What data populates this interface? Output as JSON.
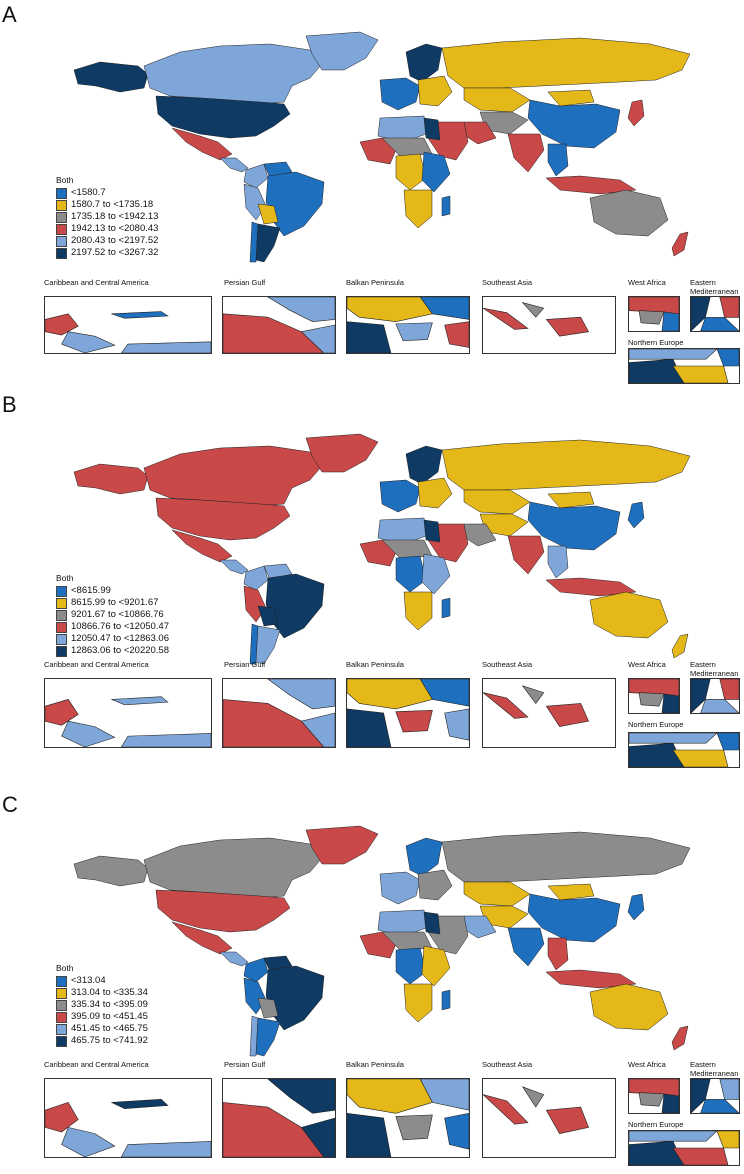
{
  "colors": {
    "c1": "#1f6fbf",
    "c2": "#e4b818",
    "c3": "#8c8c8c",
    "c4": "#c94848",
    "c5": "#7ea6d9",
    "c6": "#0e3a63",
    "ocean": "#ffffff",
    "border": "#222222"
  },
  "insets": {
    "caribbean": "Caribbean and Central America",
    "persian_gulf": "Persian Gulf",
    "balkan": "Balkan Peninsula",
    "southeast_asia": "Southeast Asia",
    "west_africa": "West Africa",
    "eastern_med": "Eastern Mediterranean",
    "northern_europe": "Northern Europe"
  },
  "panels": [
    {
      "letter": "A",
      "legend_title": "Both",
      "legend": [
        "<1580.7",
        "1580.7 to <1735.18",
        "1735.18 to <1942.13",
        "1942.13 to <2080.43",
        "2080.43 to <2197.52",
        "2197.52 to <3267.32"
      ],
      "regions": {
        "alaska": "c6",
        "canada": "c5",
        "greenland": "c5",
        "usa": "c6",
        "mexico": "c4",
        "central_am": "c5",
        "colombia": "c5",
        "venezuela": "c1",
        "brazil": "c1",
        "bolivia": "c2",
        "peru": "c5",
        "argentina": "c6",
        "chile": "c1",
        "russia": "c2",
        "scandinavia": "c6",
        "western_eu": "c1",
        "eastern_eu": "c2",
        "north_africa": "c5",
        "egypt": "c6",
        "sahel": "c3",
        "west_africa": "c4",
        "central_africa": "c2",
        "east_africa": "c1",
        "southern_africa": "c2",
        "madagascar": "c1",
        "middle_east": "c4",
        "iran": "c4",
        "kazakhstan": "c2",
        "central_asia": "c3",
        "india": "c4",
        "china": "c1",
        "mongolia": "c2",
        "japan": "c4",
        "se_asia": "c1",
        "indonesia": "c4",
        "australia": "c3",
        "nz": "c4"
      },
      "inset_colors": {
        "caribbean": [
          "c4",
          "c5",
          "c1",
          "c5"
        ],
        "persian_gulf": [
          "c4",
          "c5",
          "c5"
        ],
        "balkan": [
          "c2",
          "c1",
          "c6",
          "c4",
          "c5"
        ],
        "southeast_asia": [
          "c4",
          "c3",
          "c4"
        ],
        "west_africa": [
          "c4",
          "c3",
          "c1"
        ],
        "eastern_med": [
          "c6",
          "c4",
          "c1"
        ],
        "northern_europe": [
          "c6",
          "c1",
          "c2",
          "c5"
        ]
      }
    },
    {
      "letter": "B",
      "legend_title": "Both",
      "legend": [
        "<8615.99",
        "8615.99 to <9201.67",
        "9201.67 to <10866.76",
        "10866.76 to <12050.47",
        "12050.47 to <12863.06",
        "12863.06 to <20220.58"
      ],
      "regions": {
        "alaska": "c4",
        "canada": "c4",
        "greenland": "c4",
        "usa": "c4",
        "mexico": "c4",
        "central_am": "c5",
        "colombia": "c5",
        "venezuela": "c5",
        "brazil": "c6",
        "bolivia": "c6",
        "peru": "c4",
        "argentina": "c5",
        "chile": "c1",
        "russia": "c2",
        "scandinavia": "c6",
        "western_eu": "c1",
        "eastern_eu": "c2",
        "north_africa": "c5",
        "egypt": "c6",
        "sahel": "c3",
        "west_africa": "c4",
        "central_africa": "c1",
        "east_africa": "c5",
        "southern_africa": "c2",
        "madagascar": "c1",
        "middle_east": "c4",
        "iran": "c3",
        "kazakhstan": "c2",
        "central_asia": "c2",
        "india": "c4",
        "china": "c1",
        "mongolia": "c2",
        "japan": "c1",
        "se_asia": "c5",
        "indonesia": "c4",
        "australia": "c2",
        "nz": "c2"
      },
      "inset_colors": {
        "caribbean": [
          "c4",
          "c5",
          "c5",
          "c5"
        ],
        "persian_gulf": [
          "c4",
          "c5",
          "c5"
        ],
        "balkan": [
          "c2",
          "c1",
          "c6",
          "c5",
          "c4"
        ],
        "southeast_asia": [
          "c4",
          "c3",
          "c4"
        ],
        "west_africa": [
          "c4",
          "c3",
          "c6"
        ],
        "eastern_med": [
          "c6",
          "c4",
          "c5"
        ],
        "northern_europe": [
          "c6",
          "c1",
          "c2",
          "c5"
        ]
      }
    },
    {
      "letter": "C",
      "legend_title": "Both",
      "legend": [
        "<313.04",
        "313.04 to <335.34",
        "335.34 to <395.09",
        "395.09 to <451.45",
        "451.45 to <465.75",
        "465.75 to <741.92"
      ],
      "regions": {
        "alaska": "c3",
        "canada": "c3",
        "greenland": "c4",
        "usa": "c4",
        "mexico": "c4",
        "central_am": "c5",
        "colombia": "c1",
        "venezuela": "c6",
        "brazil": "c6",
        "bolivia": "c3",
        "peru": "c1",
        "argentina": "c1",
        "chile": "c5",
        "russia": "c3",
        "scandinavia": "c1",
        "western_eu": "c5",
        "eastern_eu": "c3",
        "north_africa": "c5",
        "egypt": "c6",
        "sahel": "c3",
        "west_africa": "c4",
        "central_africa": "c1",
        "east_africa": "c2",
        "southern_africa": "c2",
        "madagascar": "c1",
        "middle_east": "c3",
        "iran": "c5",
        "kazakhstan": "c2",
        "central_asia": "c2",
        "india": "c1",
        "china": "c1",
        "mongolia": "c2",
        "japan": "c1",
        "se_asia": "c4",
        "indonesia": "c4",
        "australia": "c2",
        "nz": "c4"
      },
      "inset_colors": {
        "caribbean": [
          "c4",
          "c5",
          "c6",
          "c5"
        ],
        "persian_gulf": [
          "c4",
          "c6",
          "c6"
        ],
        "balkan": [
          "c2",
          "c5",
          "c6",
          "c1",
          "c3"
        ],
        "southeast_asia": [
          "c4",
          "c3",
          "c4"
        ],
        "west_africa": [
          "c4",
          "c3",
          "c6"
        ],
        "eastern_med": [
          "c6",
          "c5",
          "c1"
        ],
        "northern_europe": [
          "c6",
          "c2",
          "c4",
          "c5"
        ]
      }
    }
  ]
}
